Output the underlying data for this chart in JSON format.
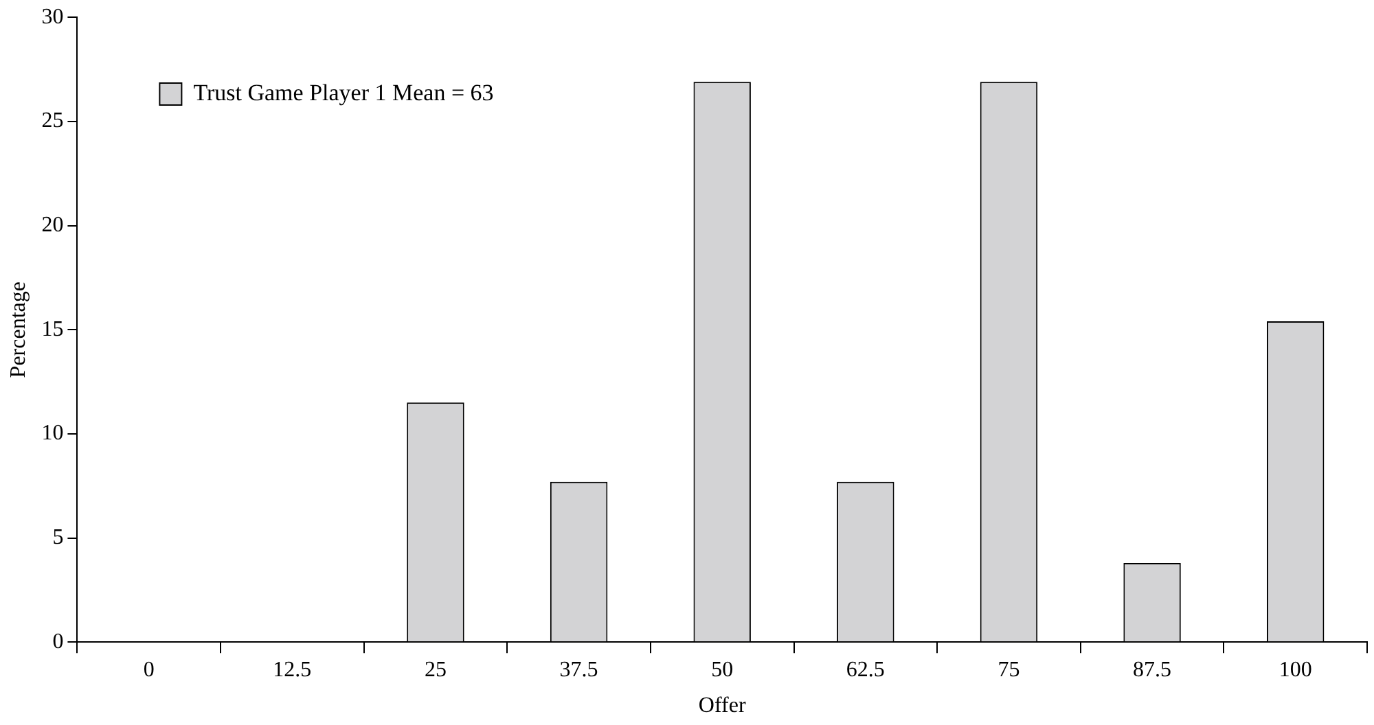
{
  "chart_data": {
    "type": "bar",
    "xlabel": "Offer",
    "ylabel": "Percentage",
    "categories": [
      "0",
      "12.5",
      "25",
      "37.5",
      "50",
      "62.5",
      "75",
      "87.5",
      "100"
    ],
    "series": [
      {
        "name": "Trust Game Player 1 Mean = 63",
        "color": "#d3d3d5",
        "values": [
          0,
          0,
          11.5,
          7.7,
          26.9,
          7.7,
          26.9,
          3.8,
          15.4
        ]
      }
    ],
    "ylim": [
      0,
      30
    ],
    "yticks": [
      0,
      5,
      10,
      15,
      20,
      25,
      30
    ],
    "grid": false,
    "legend": "top left"
  }
}
